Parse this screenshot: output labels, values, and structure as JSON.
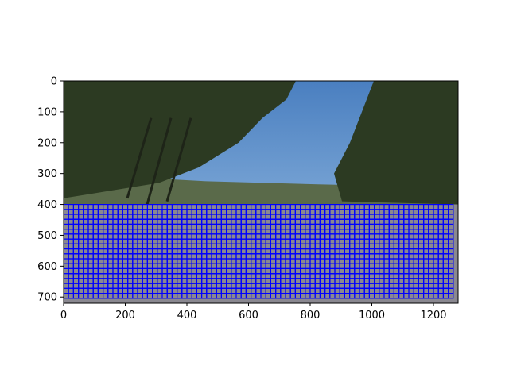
{
  "chart_data": {
    "type": "heatmap",
    "description_kind": "image plot (imshow) of a road-scene photo with a dense grid of blue sliding-window rectangles overlaid",
    "title": "",
    "xlabel": "",
    "ylabel": "",
    "xlim": [
      0,
      1280
    ],
    "ylim": [
      720,
      0
    ],
    "y_axis_inverted": true,
    "grid": false,
    "legend": "none",
    "x_ticks": [
      0,
      200,
      400,
      600,
      800,
      1000,
      1200
    ],
    "y_ticks": [
      0,
      100,
      200,
      300,
      400,
      500,
      600,
      700
    ],
    "overlay": {
      "shape": "rectangle-grid",
      "color": "#0000ff",
      "x_start": 0,
      "x_end": 1270,
      "y_start": 400,
      "y_end": 700,
      "window_size": 32,
      "step": 16
    },
    "scene_colors": {
      "sky_top": "#4a7fc0",
      "sky_bottom": "#9fc3e6",
      "trees": "#2c3a22",
      "hills": "#5a6a4a",
      "road": "#8a8890"
    }
  }
}
